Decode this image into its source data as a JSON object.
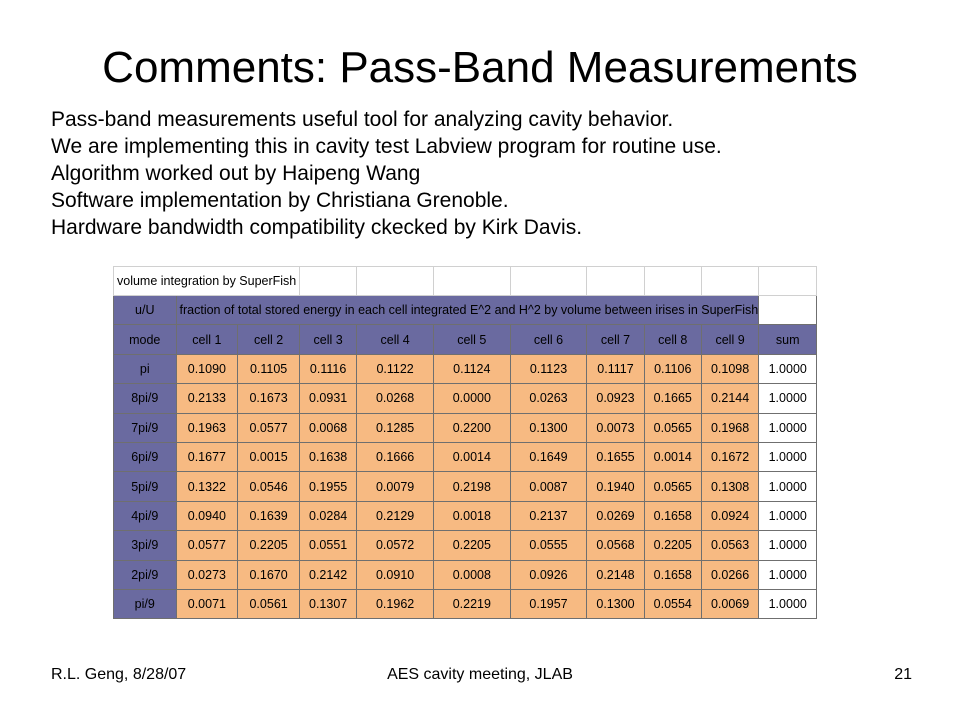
{
  "slide": {
    "title": "Comments: Pass-Band Measurements",
    "bullets": [
      "Pass-band measurements useful tool for analyzing cavity behavior.",
      "We are implementing this in cavity test Labview program for routine use.",
      "Algorithm worked out by Haipeng Wang",
      "Software implementation by Christiana Grenoble.",
      "Hardware bandwidth compatibility ckecked by Kirk Davis."
    ],
    "footer": {
      "left": "R.L. Geng, 8/28/07",
      "center": "AES cavity meeting, JLAB",
      "right": "21"
    }
  },
  "table": {
    "heading": "volume integration by SuperFish",
    "unit_label": "u/U",
    "description": "fraction of total stored energy in each cell integrated E^2 and H^2 by volume between irises in SuperFish",
    "columns": [
      "mode",
      "cell 1",
      "cell 2",
      "cell 3",
      "cell 4",
      "cell 5",
      "cell 6",
      "cell 7",
      "cell 8",
      "cell 9",
      "sum"
    ],
    "rows": [
      [
        "pi",
        "0.1090",
        "0.1105",
        "0.1116",
        "0.1122",
        "0.1124",
        "0.1123",
        "0.1117",
        "0.1106",
        "0.1098",
        "1.0000"
      ],
      [
        "8pi/9",
        "0.2133",
        "0.1673",
        "0.0931",
        "0.0268",
        "0.0000",
        "0.0263",
        "0.0923",
        "0.1665",
        "0.2144",
        "1.0000"
      ],
      [
        "7pi/9",
        "0.1963",
        "0.0577",
        "0.0068",
        "0.1285",
        "0.2200",
        "0.1300",
        "0.0073",
        "0.0565",
        "0.1968",
        "1.0000"
      ],
      [
        "6pi/9",
        "0.1677",
        "0.0015",
        "0.1638",
        "0.1666",
        "0.0014",
        "0.1649",
        "0.1655",
        "0.0014",
        "0.1672",
        "1.0000"
      ],
      [
        "5pi/9",
        "0.1322",
        "0.0546",
        "0.1955",
        "0.0079",
        "0.2198",
        "0.0087",
        "0.1940",
        "0.0565",
        "0.1308",
        "1.0000"
      ],
      [
        "4pi/9",
        "0.0940",
        "0.1639",
        "0.0284",
        "0.2129",
        "0.0018",
        "0.2137",
        "0.0269",
        "0.1658",
        "0.0924",
        "1.0000"
      ],
      [
        "3pi/9",
        "0.0577",
        "0.2205",
        "0.0551",
        "0.0572",
        "0.2205",
        "0.0555",
        "0.0568",
        "0.2205",
        "0.0563",
        "1.0000"
      ],
      [
        "2pi/9",
        "0.0273",
        "0.1670",
        "0.2142",
        "0.0910",
        "0.0008",
        "0.0926",
        "0.2148",
        "0.1658",
        "0.0266",
        "1.0000"
      ],
      [
        "pi/9",
        "0.0071",
        "0.0561",
        "0.1307",
        "0.1962",
        "0.2219",
        "0.1957",
        "0.1300",
        "0.0554",
        "0.0069",
        "1.0000"
      ]
    ]
  },
  "colors": {
    "header_fill": "#6a6aa0",
    "value_fill": "#f7ba82",
    "sum_fill": "#ffffff"
  }
}
